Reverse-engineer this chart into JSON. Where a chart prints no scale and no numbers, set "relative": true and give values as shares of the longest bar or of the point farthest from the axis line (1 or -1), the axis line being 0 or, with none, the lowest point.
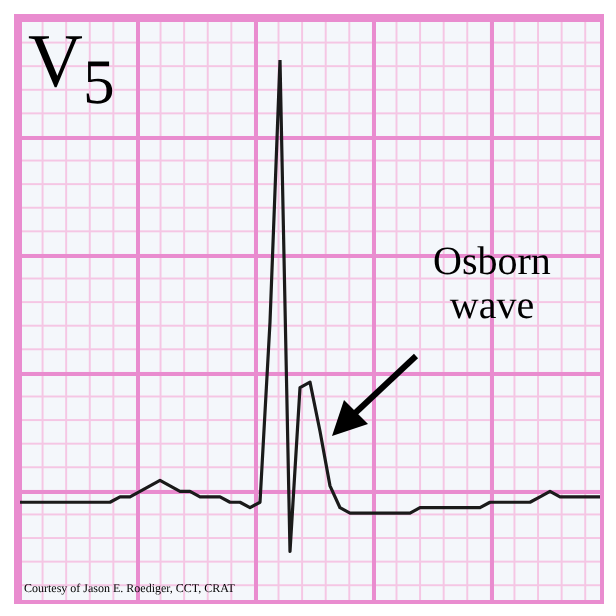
{
  "chart_data": {
    "type": "line",
    "title": "V$_{5}$",
    "relative": true,
    "color": "#1a1a1a",
    "annotations": [
      "Osborn wave",
      "Courtesy of Jason E. Roediger, CCT, CRAT"
    ],
    "categories": [
      null,
      null,
      null,
      null,
      null,
      null,
      null,
      null,
      null,
      null,
      null,
      null,
      null,
      null,
      null,
      null,
      null,
      null,
      null,
      null,
      null,
      null,
      null,
      null,
      null,
      null,
      null,
      null,
      null,
      null,
      null,
      null,
      null,
      null,
      null,
      null,
      null,
      null,
      null,
      null,
      null,
      null,
      null,
      null,
      null,
      null,
      null,
      null,
      null,
      null,
      null,
      null,
      null,
      null,
      null,
      null,
      null,
      null,
      null
    ],
    "values": [
      0.19,
      0.19,
      0.19,
      0.19,
      0.19,
      0.19,
      0.19,
      0.19,
      0.19,
      0.19,
      0.2,
      0.2,
      0.21,
      0.22,
      0.23,
      0.22,
      0.21,
      0.21,
      0.2,
      0.2,
      0.2,
      0.19,
      0.19,
      0.18,
      0.19,
      0.52,
      1.0,
      0.1,
      0.4,
      0.41,
      0.32,
      0.22,
      0.18,
      0.17,
      0.17,
      0.17,
      0.17,
      0.17,
      0.17,
      0.17,
      0.18,
      0.18,
      0.18,
      0.18,
      0.18,
      0.18,
      0.18,
      0.19,
      0.19,
      0.19,
      0.19,
      0.19,
      0.2,
      0.21,
      0.2,
      0.2,
      0.2,
      0.2,
      0.2
    ]
  }
}
